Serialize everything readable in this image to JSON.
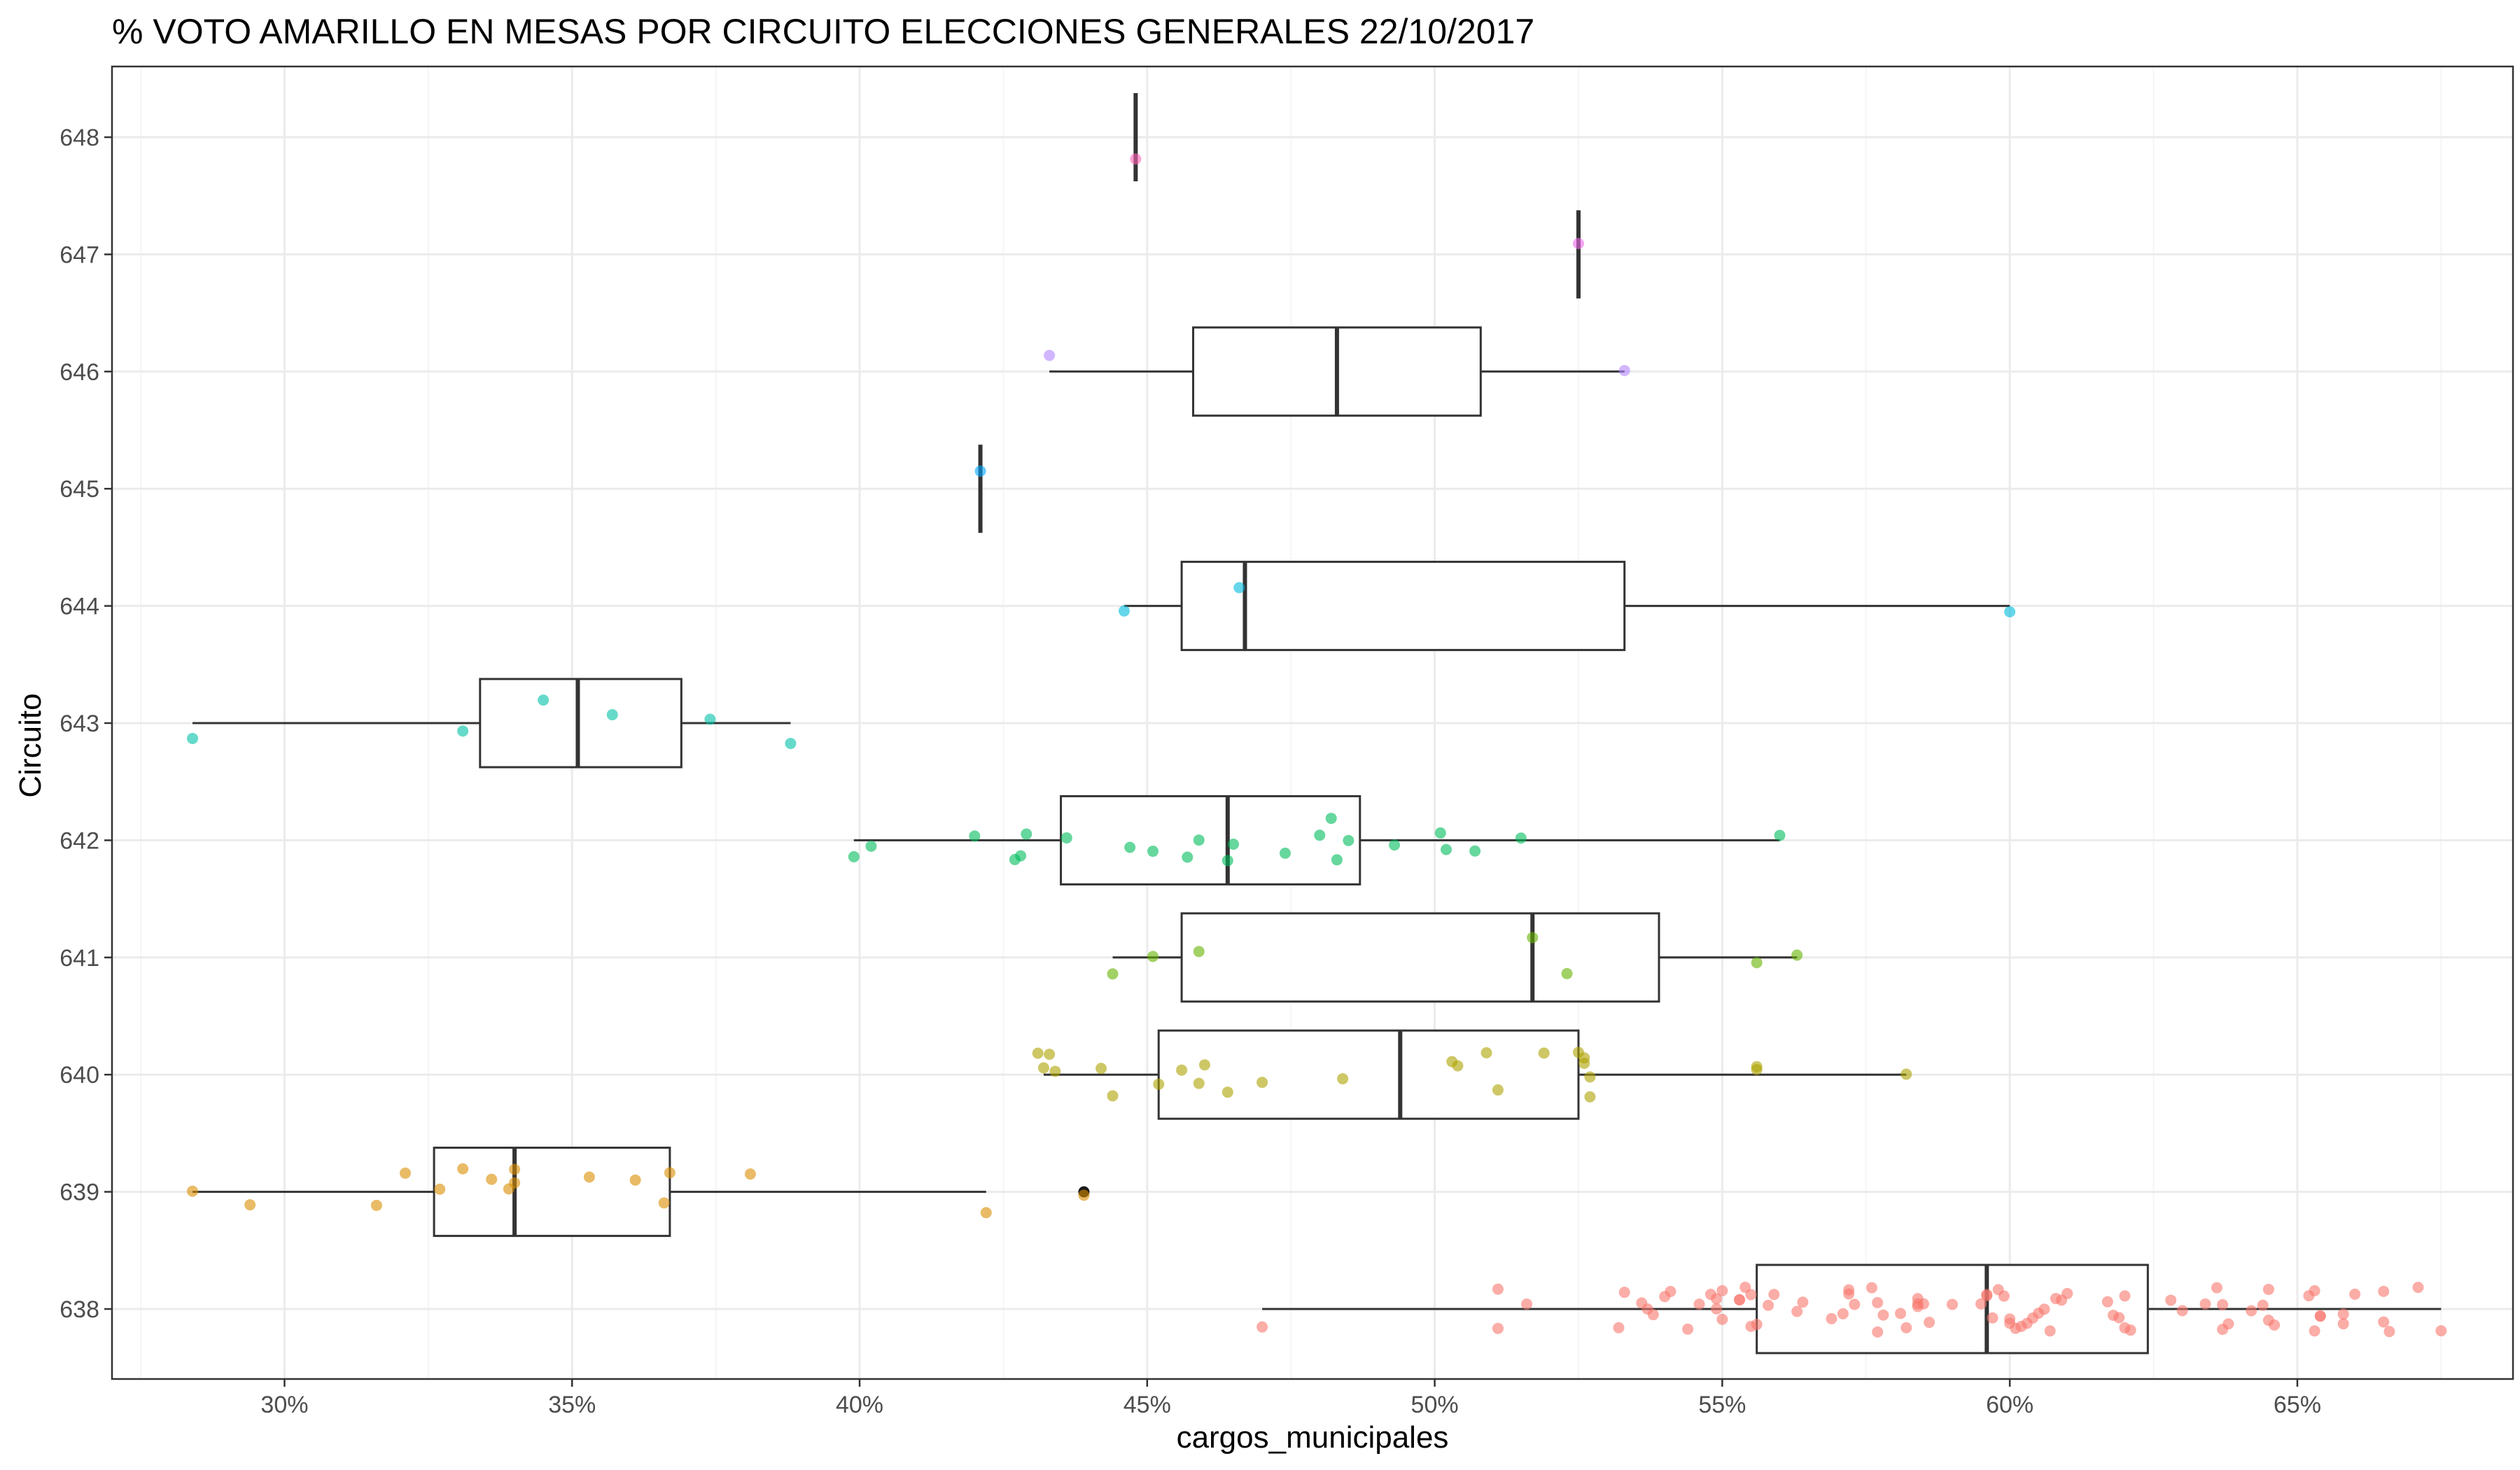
{
  "chart_data": {
    "type": "boxplot",
    "orientation": "horizontal",
    "title": "% VOTO AMARILLO EN MESAS POR CIRCUITO  ELECCIONES GENERALES 22/10/2017",
    "xlabel": "cargos_municipales",
    "ylabel": "Circuito",
    "xlim": [
      0.27,
      0.6875
    ],
    "xticks": [
      {
        "value": 0.3,
        "label": "30%"
      },
      {
        "value": 0.35,
        "label": "35%"
      },
      {
        "value": 0.4,
        "label": "40%"
      },
      {
        "value": 0.45,
        "label": "45%"
      },
      {
        "value": 0.5,
        "label": "50%"
      },
      {
        "value": 0.55,
        "label": "55%"
      },
      {
        "value": 0.6,
        "label": "60%"
      },
      {
        "value": 0.65,
        "label": "65%"
      }
    ],
    "categories": [
      "638",
      "639",
      "640",
      "641",
      "642",
      "643",
      "644",
      "645",
      "646",
      "647",
      "648"
    ],
    "grid": true,
    "legend": "none",
    "colors": {
      "638": "#F8766D",
      "639": "#DB8E00",
      "640": "#AEA200",
      "641": "#64B200",
      "642": "#00BD5C",
      "643": "#00C1A7",
      "644": "#00BADE",
      "645": "#00A6FF",
      "646": "#B385FF",
      "647": "#EF67EB",
      "648": "#FF63B6"
    },
    "boxes": [
      {
        "circuito": "638",
        "whisker_low": 0.47,
        "q1": 0.556,
        "median": 0.596,
        "q3": 0.624,
        "whisker_high": 0.675
      },
      {
        "circuito": "639",
        "whisker_low": 0.284,
        "q1": 0.326,
        "median": 0.34,
        "q3": 0.367,
        "whisker_high": 0.422
      },
      {
        "circuito": "640",
        "whisker_low": 0.432,
        "q1": 0.452,
        "median": 0.494,
        "q3": 0.525,
        "whisker_high": 0.582
      },
      {
        "circuito": "641",
        "whisker_low": 0.444,
        "q1": 0.456,
        "median": 0.517,
        "q3": 0.539,
        "whisker_high": 0.563
      },
      {
        "circuito": "642",
        "whisker_low": 0.399,
        "q1": 0.435,
        "median": 0.464,
        "q3": 0.487,
        "whisker_high": 0.56
      },
      {
        "circuito": "643",
        "whisker_low": 0.284,
        "q1": 0.334,
        "median": 0.351,
        "q3": 0.369,
        "whisker_high": 0.388
      },
      {
        "circuito": "644",
        "whisker_low": 0.446,
        "q1": 0.456,
        "median": 0.467,
        "q3": 0.533,
        "whisker_high": 0.6
      },
      {
        "circuito": "645",
        "whisker_low": 0.421,
        "q1": 0.421,
        "median": 0.421,
        "q3": 0.421,
        "whisker_high": 0.421
      },
      {
        "circuito": "646",
        "whisker_low": 0.433,
        "q1": 0.458,
        "median": 0.483,
        "q3": 0.508,
        "whisker_high": 0.533
      },
      {
        "circuito": "647",
        "whisker_low": 0.525,
        "q1": 0.525,
        "median": 0.525,
        "q3": 0.525,
        "whisker_high": 0.525
      },
      {
        "circuito": "648",
        "whisker_low": 0.448,
        "q1": 0.448,
        "median": 0.448,
        "q3": 0.448,
        "whisker_high": 0.448
      }
    ],
    "outliers": [
      {
        "circuito": "639",
        "value": 0.439
      }
    ],
    "points": {
      "638": [
        0.47,
        0.511,
        0.511,
        0.516,
        0.532,
        0.533,
        0.536,
        0.537,
        0.538,
        0.54,
        0.541,
        0.544,
        0.546,
        0.548,
        0.549,
        0.549,
        0.55,
        0.55,
        0.553,
        0.553,
        0.554,
        0.555,
        0.555,
        0.556,
        0.558,
        0.559,
        0.563,
        0.564,
        0.569,
        0.571,
        0.572,
        0.572,
        0.573,
        0.576,
        0.577,
        0.577,
        0.578,
        0.581,
        0.582,
        0.584,
        0.584,
        0.584,
        0.585,
        0.586,
        0.59,
        0.595,
        0.596,
        0.596,
        0.597,
        0.598,
        0.599,
        0.6,
        0.6,
        0.601,
        0.602,
        0.603,
        0.604,
        0.605,
        0.606,
        0.607,
        0.608,
        0.609,
        0.61,
        0.617,
        0.618,
        0.619,
        0.62,
        0.62,
        0.621,
        0.628,
        0.63,
        0.634,
        0.636,
        0.637,
        0.637,
        0.638,
        0.642,
        0.644,
        0.645,
        0.645,
        0.646,
        0.652,
        0.653,
        0.653,
        0.654,
        0.654,
        0.658,
        0.658,
        0.66,
        0.665,
        0.665,
        0.666,
        0.671,
        0.675
      ],
      "639": [
        0.284,
        0.294,
        0.316,
        0.321,
        0.327,
        0.331,
        0.336,
        0.339,
        0.34,
        0.34,
        0.353,
        0.361,
        0.366,
        0.367,
        0.381,
        0.422,
        0.439
      ],
      "640": [
        0.431,
        0.432,
        0.433,
        0.434,
        0.442,
        0.444,
        0.452,
        0.456,
        0.459,
        0.46,
        0.464,
        0.47,
        0.484,
        0.503,
        0.504,
        0.509,
        0.511,
        0.519,
        0.525,
        0.526,
        0.526,
        0.527,
        0.527,
        0.556,
        0.556,
        0.582
      ],
      "641": [
        0.444,
        0.451,
        0.459,
        0.517,
        0.523,
        0.556,
        0.563
      ],
      "642": [
        0.399,
        0.402,
        0.42,
        0.427,
        0.428,
        0.429,
        0.436,
        0.447,
        0.451,
        0.457,
        0.459,
        0.464,
        0.465,
        0.474,
        0.48,
        0.482,
        0.483,
        0.485,
        0.493,
        0.501,
        0.502,
        0.507,
        0.515,
        0.56
      ],
      "643": [
        0.284,
        0.331,
        0.345,
        0.357,
        0.374,
        0.388
      ],
      "644": [
        0.446,
        0.466,
        0.6
      ],
      "645": [
        0.421
      ],
      "646": [
        0.433,
        0.533
      ],
      "647": [
        0.525
      ],
      "648": [
        0.448
      ]
    }
  }
}
